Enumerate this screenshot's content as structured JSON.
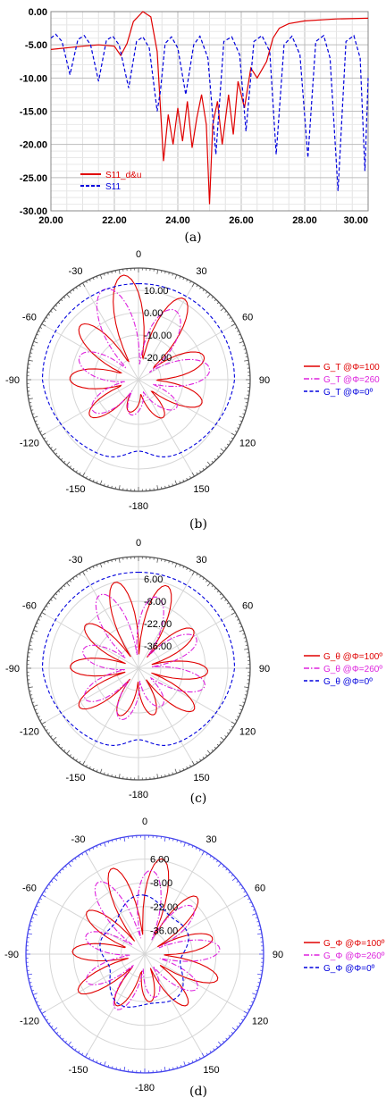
{
  "chart_data": [
    {
      "type": "line",
      "caption": "(a)",
      "xlim": [
        20,
        30
      ],
      "ylim": [
        -30,
        0
      ],
      "x_ticks": [
        "20.00",
        "22.00",
        "24.00",
        "26.00",
        "28.00",
        "30.00"
      ],
      "y_ticks": [
        "0.00",
        "-5.00",
        "-10.00",
        "-15.00",
        "-20.00",
        "-25.00",
        "-30.00"
      ],
      "grid": true,
      "legend_position": "bottom-left",
      "series": [
        {
          "name": "S11_d&u",
          "color": "#e00000",
          "dash": "solid",
          "points": [
            [
              20,
              -5.7
            ],
            [
              21,
              -5.2
            ],
            [
              21.5,
              -5.0
            ],
            [
              22,
              -5.2
            ],
            [
              22.2,
              -6.6
            ],
            [
              22.4,
              -4.8
            ],
            [
              22.6,
              -1.5
            ],
            [
              22.9,
              0.0
            ],
            [
              23.15,
              -0.8
            ],
            [
              23.35,
              -6.0
            ],
            [
              23.55,
              -22.5
            ],
            [
              23.7,
              -15.5
            ],
            [
              23.85,
              -20.0
            ],
            [
              24.0,
              -14.5
            ],
            [
              24.15,
              -19.5
            ],
            [
              24.3,
              -13.5
            ],
            [
              24.45,
              -20.5
            ],
            [
              24.6,
              -16.0
            ],
            [
              24.75,
              -12.5
            ],
            [
              24.9,
              -17.0
            ],
            [
              25.0,
              -29.0
            ],
            [
              25.1,
              -17.0
            ],
            [
              25.25,
              -13.5
            ],
            [
              25.4,
              -20.0
            ],
            [
              25.6,
              -12.5
            ],
            [
              25.75,
              -18.5
            ],
            [
              25.9,
              -10.5
            ],
            [
              26.1,
              -14.5
            ],
            [
              26.3,
              -8.5
            ],
            [
              26.5,
              -10.0
            ],
            [
              26.8,
              -7.5
            ],
            [
              27.0,
              -4.0
            ],
            [
              27.2,
              -2.5
            ],
            [
              27.5,
              -1.8
            ],
            [
              28,
              -1.4
            ],
            [
              29,
              -1.1
            ],
            [
              30,
              -1.0
            ]
          ]
        },
        {
          "name": "S11",
          "color": "#0000dd",
          "dash": "dashed",
          "points": [
            [
              20,
              -4.0
            ],
            [
              20.15,
              -3.4
            ],
            [
              20.35,
              -4.5
            ],
            [
              20.6,
              -9.5
            ],
            [
              20.85,
              -4.2
            ],
            [
              21.05,
              -3.6
            ],
            [
              21.25,
              -5.0
            ],
            [
              21.5,
              -10.5
            ],
            [
              21.75,
              -4.3
            ],
            [
              21.95,
              -3.7
            ],
            [
              22.15,
              -5.0
            ],
            [
              22.45,
              -11.5
            ],
            [
              22.7,
              -4.5
            ],
            [
              22.9,
              -3.8
            ],
            [
              23.1,
              -5.5
            ],
            [
              23.35,
              -15.0
            ],
            [
              23.45,
              -12.0
            ],
            [
              23.6,
              -4.8
            ],
            [
              23.8,
              -3.8
            ],
            [
              24.0,
              -5.5
            ],
            [
              24.25,
              -12.5
            ],
            [
              24.5,
              -5.0
            ],
            [
              24.7,
              -3.7
            ],
            [
              24.95,
              -7.0
            ],
            [
              25.2,
              -21.5
            ],
            [
              25.45,
              -4.5
            ],
            [
              25.7,
              -3.8
            ],
            [
              25.95,
              -6.5
            ],
            [
              26.15,
              -18.0
            ],
            [
              26.4,
              -4.5
            ],
            [
              26.65,
              -3.6
            ],
            [
              26.9,
              -6.0
            ],
            [
              27.1,
              -21.5
            ],
            [
              27.35,
              -5.0
            ],
            [
              27.6,
              -3.7
            ],
            [
              27.85,
              -6.5
            ],
            [
              28.1,
              -22.0
            ],
            [
              28.35,
              -4.5
            ],
            [
              28.6,
              -3.6
            ],
            [
              28.8,
              -7.0
            ],
            [
              29.05,
              -27.0
            ],
            [
              29.3,
              -4.5
            ],
            [
              29.55,
              -3.6
            ],
            [
              29.75,
              -7.0
            ],
            [
              29.9,
              -24.0
            ],
            [
              30.0,
              -10.0
            ]
          ]
        }
      ]
    },
    {
      "type": "polar",
      "caption": "(b)",
      "r_ticks": [
        "10.00",
        "0.00",
        "-10.00",
        "-20.00"
      ],
      "angle_ticks": [
        "0",
        "30",
        "60",
        "90",
        "120",
        "150",
        "-180",
        "-150",
        "-120",
        "-90",
        "-60",
        "-30"
      ],
      "rim_color": "#555555",
      "series": [
        {
          "name": "G_T @Φ=100",
          "color": "#e00000",
          "dash": "solid",
          "lobes": 9,
          "phase": 0
        },
        {
          "name": "G_T @Φ=260",
          "color": "#dd22dd",
          "dash": "dashdot",
          "lobes": 7,
          "phase": 1
        },
        {
          "name": "G_T @Φ=0º",
          "color": "#0000dd",
          "dash": "dashed",
          "lobes": 0,
          "phase": 0
        }
      ]
    },
    {
      "type": "polar",
      "caption": "(c)",
      "r_ticks": [
        "6.00",
        "-8.00",
        "-22.00",
        "-36.00"
      ],
      "angle_ticks": [
        "0",
        "30",
        "60",
        "90",
        "120",
        "150",
        "-180",
        "-150",
        "-120",
        "-90",
        "-60",
        "-30"
      ],
      "rim_color": "#555555",
      "series": [
        {
          "name": "G_θ @Φ=100º",
          "color": "#e00000",
          "dash": "solid",
          "lobes": 10,
          "phase": 0
        },
        {
          "name": "G_θ @Φ=260º",
          "color": "#dd22dd",
          "dash": "dashdot",
          "lobes": 8,
          "phase": 1
        },
        {
          "name": "G_θ @Φ=0º",
          "color": "#0000dd",
          "dash": "dashed",
          "lobes": 0,
          "phase": 0
        }
      ]
    },
    {
      "type": "polar",
      "caption": "(d)",
      "r_ticks": [
        "6.00",
        "-8.00",
        "-22.00",
        "-36.00"
      ],
      "angle_ticks": [
        "0",
        "30",
        "60",
        "90",
        "120",
        "150",
        "-180",
        "-150",
        "-120",
        "-90",
        "-60",
        "-30"
      ],
      "rim_color": "#4444ee",
      "series": [
        {
          "name": "G_Φ @Φ=100º",
          "color": "#e00000",
          "dash": "solid",
          "lobes": 11,
          "phase": 0
        },
        {
          "name": "G_Φ @Φ=260º",
          "color": "#dd22dd",
          "dash": "dashdot",
          "lobes": 9,
          "phase": 1
        },
        {
          "name": "G_Φ @Φ=0º",
          "color": "#0000dd",
          "dash": "dashed",
          "lobes": 0,
          "phase": 0
        }
      ]
    }
  ]
}
